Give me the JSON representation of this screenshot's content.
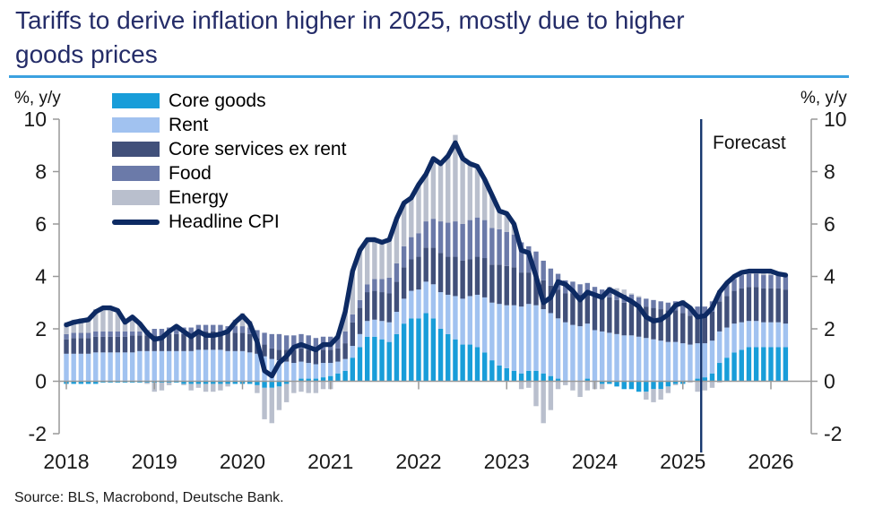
{
  "title": {
    "line1": "Tariffs to derive inflation higher in 2025, mostly due to higher",
    "line2": "goods prices"
  },
  "axis_unit_left": "%, y/y",
  "axis_unit_right": "%, y/y",
  "forecast_label": "Forecast",
  "source": "Source: BLS, Macrobond, Deutsche Bank.",
  "colors": {
    "title": "#242c68",
    "title_underline": "#3ba1e0",
    "axis": "#999999",
    "tick_text": "#1a1a1a",
    "forecast_line": "#16366e"
  },
  "chart_data": {
    "type": "bar",
    "subtype": "stacked-monthly-bars-with-line",
    "x_start_month": "2018-01",
    "x_end_month": "2026-03",
    "forecast_start_month": "2025-04",
    "forecast_boundary_index": 87,
    "ylim": [
      -2,
      10
    ],
    "y_ticks": [
      -2,
      0,
      2,
      4,
      6,
      8,
      10
    ],
    "year_labels": [
      "2018",
      "2019",
      "2020",
      "2021",
      "2022",
      "2023",
      "2024",
      "2025",
      "2026"
    ],
    "grid": "zero-line-only",
    "legend_position": "top-left-inside",
    "series": [
      {
        "name": "Core goods",
        "color": "#189dd9",
        "values": [
          -0.1,
          -0.1,
          -0.1,
          -0.1,
          -0.1,
          -0.05,
          -0.05,
          -0.05,
          -0.05,
          -0.05,
          -0.05,
          -0.05,
          -0.05,
          -0.05,
          -0.05,
          -0.05,
          -0.1,
          -0.1,
          -0.1,
          -0.1,
          -0.1,
          -0.1,
          -0.1,
          -0.1,
          -0.1,
          -0.1,
          -0.15,
          -0.25,
          -0.25,
          -0.2,
          -0.1,
          0,
          0.1,
          0.1,
          0.1,
          0.15,
          0.2,
          0.3,
          0.4,
          0.9,
          1.3,
          1.7,
          1.7,
          1.6,
          1.5,
          1.8,
          2.2,
          2.4,
          2.4,
          2.6,
          2.4,
          2,
          1.8,
          1.6,
          1.4,
          1.4,
          1.3,
          1.1,
          0.8,
          0.6,
          0.5,
          0.4,
          0.3,
          0.4,
          0.4,
          0.3,
          0.2,
          0.1,
          0,
          0,
          0,
          0.1,
          0,
          -0.1,
          -0.1,
          -0.2,
          -0.3,
          -0.3,
          -0.4,
          -0.4,
          -0.3,
          -0.3,
          -0.2,
          -0.1,
          -0.1,
          0,
          0.1,
          0.15,
          0.3,
          0.7,
          0.9,
          1.1,
          1.2,
          1.3,
          1.3,
          1.3,
          1.3,
          1.3,
          1.3
        ]
      },
      {
        "name": "Rent",
        "color": "#a1c2f0",
        "values": [
          1.05,
          1.05,
          1.05,
          1.05,
          1.1,
          1.1,
          1.1,
          1.1,
          1.1,
          1.1,
          1.15,
          1.15,
          1.15,
          1.15,
          1.15,
          1.15,
          1.15,
          1.15,
          1.2,
          1.2,
          1.2,
          1.2,
          1.15,
          1.15,
          1.15,
          1.1,
          1.05,
          0.95,
          0.85,
          0.8,
          0.75,
          0.7,
          0.65,
          0.6,
          0.55,
          0.55,
          0.5,
          0.45,
          0.45,
          0.45,
          0.5,
          0.6,
          0.65,
          0.7,
          0.75,
          0.85,
          0.95,
          1.05,
          1.1,
          1.2,
          1.3,
          1.4,
          1.5,
          1.65,
          1.75,
          1.85,
          2,
          2.1,
          2.2,
          2.35,
          2.4,
          2.5,
          2.55,
          2.55,
          2.5,
          2.45,
          2.4,
          2.3,
          2.25,
          2.15,
          2.1,
          2.1,
          1.95,
          1.9,
          1.85,
          1.8,
          1.75,
          1.75,
          1.7,
          1.65,
          1.6,
          1.55,
          1.5,
          1.5,
          1.45,
          1.4,
          1.35,
          1.3,
          1.25,
          1.2,
          1.15,
          1.1,
          1.05,
          1,
          1,
          0.95,
          0.95,
          0.95,
          0.9
        ]
      },
      {
        "name": "Core services ex rent",
        "color": "#41507a",
        "values": [
          0.55,
          0.6,
          0.6,
          0.6,
          0.6,
          0.6,
          0.6,
          0.6,
          0.6,
          0.65,
          0.6,
          0.6,
          0.6,
          0.6,
          0.65,
          0.65,
          0.65,
          0.65,
          0.7,
          0.7,
          0.7,
          0.7,
          0.7,
          0.7,
          0.7,
          0.7,
          0.6,
          0.45,
          0.4,
          0.4,
          0.45,
          0.5,
          0.5,
          0.5,
          0.5,
          0.5,
          0.5,
          0.5,
          0.6,
          0.9,
          1,
          1.1,
          1.1,
          1.1,
          1.1,
          1.15,
          1.2,
          1.2,
          1.25,
          1.3,
          1.4,
          1.5,
          1.45,
          1.5,
          1.45,
          1.4,
          1.45,
          1.5,
          1.45,
          1.5,
          1.5,
          1.45,
          1.3,
          1.2,
          1.15,
          1.1,
          1.05,
          1.1,
          1.1,
          1.2,
          1.2,
          1.2,
          1.3,
          1.3,
          1.35,
          1.3,
          1.25,
          1.25,
          1.2,
          1.2,
          1.2,
          1.2,
          1.2,
          1.2,
          1.15,
          1.1,
          1.05,
          1.05,
          1.1,
          1.15,
          1.2,
          1.25,
          1.3,
          1.3,
          1.3,
          1.3,
          1.3,
          1.3,
          1.3
        ]
      },
      {
        "name": "Food",
        "color": "#6b7aa9",
        "values": [
          0.2,
          0.2,
          0.2,
          0.2,
          0.2,
          0.2,
          0.2,
          0.2,
          0.2,
          0.15,
          0.15,
          0.2,
          0.25,
          0.25,
          0.25,
          0.25,
          0.25,
          0.25,
          0.25,
          0.25,
          0.25,
          0.25,
          0.25,
          0.25,
          0.25,
          0.25,
          0.3,
          0.45,
          0.55,
          0.6,
          0.55,
          0.55,
          0.55,
          0.55,
          0.5,
          0.5,
          0.5,
          0.45,
          0.45,
          0.3,
          0.3,
          0.3,
          0.45,
          0.5,
          0.6,
          0.7,
          0.8,
          0.85,
          0.9,
          1,
          1.1,
          1.2,
          1.3,
          1.35,
          1.4,
          1.5,
          1.5,
          1.45,
          1.4,
          1.35,
          1.3,
          1.25,
          1.15,
          1,
          0.9,
          0.75,
          0.65,
          0.6,
          0.5,
          0.45,
          0.4,
          0.35,
          0.35,
          0.3,
          0.3,
          0.3,
          0.3,
          0.3,
          0.3,
          0.3,
          0.3,
          0.3,
          0.3,
          0.35,
          0.35,
          0.35,
          0.35,
          0.35,
          0.4,
          0.4,
          0.45,
          0.45,
          0.5,
          0.5,
          0.5,
          0.5,
          0.5,
          0.5,
          0.5
        ]
      },
      {
        "name": "Energy",
        "color": "#b9bfcd",
        "values": [
          0.45,
          0.5,
          0.55,
          0.6,
          0.85,
          0.95,
          0.95,
          0.85,
          0.4,
          0.6,
          0.35,
          -0.05,
          -0.35,
          -0.3,
          -0.1,
          0.1,
          -0.05,
          -0.25,
          -0.15,
          -0.3,
          -0.3,
          -0.25,
          -0.1,
          0.25,
          0.5,
          0.25,
          -0.3,
          -1.2,
          -1.35,
          -0.9,
          -0.7,
          -0.45,
          -0.4,
          -0.45,
          -0.45,
          -0.3,
          -0.3,
          0,
          0.75,
          1.65,
          1.9,
          1.7,
          1.5,
          1.4,
          1.45,
          1.7,
          1.65,
          1.5,
          1.85,
          1.8,
          2.3,
          2.2,
          2.6,
          3.3,
          2.6,
          2.15,
          1.95,
          1.55,
          1.25,
          0.7,
          0.7,
          0.4,
          -0.3,
          -0.25,
          -0.95,
          -1.6,
          -1.1,
          -0.3,
          -0.15,
          -0.35,
          -0.6,
          -0.35,
          -0.3,
          -0.2,
          0.1,
          0.15,
          0.2,
          0.05,
          0.05,
          -0.3,
          -0.5,
          -0.4,
          -0.25,
          -0.05,
          0.15,
          -0.05,
          -0.4,
          -0.35,
          -0.25,
          -0.05,
          0.05,
          0.1,
          0.1,
          0.1,
          0.1,
          0.15,
          0.15,
          0.05,
          0.05
        ]
      }
    ],
    "line_series": {
      "name": "Headline CPI",
      "color": "#0d2a63",
      "values": [
        2.15,
        2.25,
        2.3,
        2.35,
        2.65,
        2.8,
        2.8,
        2.7,
        2.25,
        2.45,
        2.2,
        1.85,
        1.6,
        1.65,
        1.9,
        2.1,
        1.9,
        1.7,
        1.9,
        1.75,
        1.75,
        1.8,
        1.9,
        2.25,
        2.5,
        2.2,
        1.5,
        0.4,
        0.2,
        0.7,
        0.95,
        1.3,
        1.4,
        1.3,
        1.2,
        1.4,
        1.4,
        1.7,
        2.65,
        4.2,
        5,
        5.4,
        5.4,
        5.3,
        5.4,
        6.2,
        6.8,
        7,
        7.5,
        7.9,
        8.5,
        8.3,
        8.6,
        9.1,
        8.5,
        8.3,
        8.2,
        7.7,
        7.1,
        6.5,
        6.4,
        6,
        5,
        4.9,
        4,
        3,
        3.2,
        3.8,
        3.7,
        3.45,
        3.1,
        3.4,
        3.3,
        3.2,
        3.5,
        3.35,
        3.2,
        3.05,
        2.85,
        2.45,
        2.3,
        2.35,
        2.55,
        2.9,
        3,
        2.8,
        2.45,
        2.5,
        2.8,
        3.4,
        3.75,
        4,
        4.15,
        4.2,
        4.2,
        4.2,
        4.2,
        4.1,
        4.05
      ]
    }
  }
}
